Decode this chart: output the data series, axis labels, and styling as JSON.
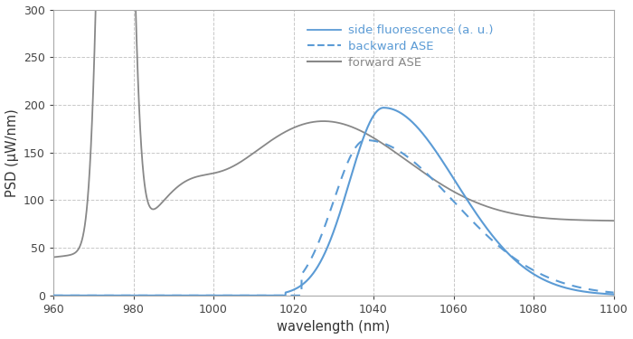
{
  "xlabel": "wavelength (nm)",
  "ylabel": "PSD (μW/nm)",
  "xlim": [
    960,
    1100
  ],
  "ylim": [
    0,
    300
  ],
  "yticks": [
    0,
    50,
    100,
    150,
    200,
    250,
    300
  ],
  "xticks": [
    960,
    980,
    1000,
    1020,
    1040,
    1060,
    1080,
    1100
  ],
  "background_color": "#ffffff",
  "grid_color": "#c8c8c8",
  "blue_color": "#5b9bd5",
  "gray_color": "#888888",
  "legend_labels": [
    "backward ASE",
    "forward ASE",
    "side fluorescence (a. u.)"
  ]
}
